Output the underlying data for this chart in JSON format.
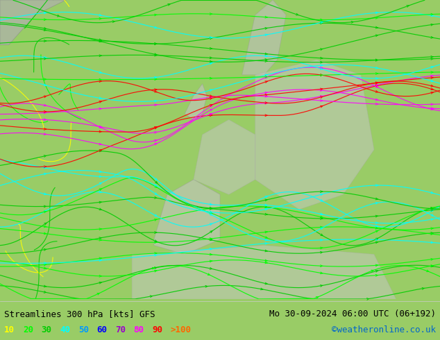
{
  "title_left": "Streamlines 300 hPa [kts] GFS",
  "title_right": "Mo 30-09-2024 06:00 UTC (06+192)",
  "credit": "©weatheronline.co.uk",
  "legend_values": [
    "10",
    "20",
    "30",
    "40",
    "50",
    "60",
    "70",
    "80",
    "90",
    ">100"
  ],
  "legend_colors": [
    "#ffff00",
    "#00ff00",
    "#00cc00",
    "#00ffff",
    "#0099ff",
    "#0000ff",
    "#9900cc",
    "#ff00ff",
    "#ff0000",
    "#ff6600"
  ],
  "background_color": "#99cc66",
  "land_color": "#aad46e",
  "sea_color": "#aad46e",
  "map_bg": "#aad46e",
  "fig_width": 6.34,
  "fig_height": 4.9,
  "dpi": 100,
  "bottom_bar_color": "#ffffff",
  "text_color": "#000000",
  "title_font_size": 9,
  "legend_font_size": 9,
  "credit_color": "#0066cc"
}
